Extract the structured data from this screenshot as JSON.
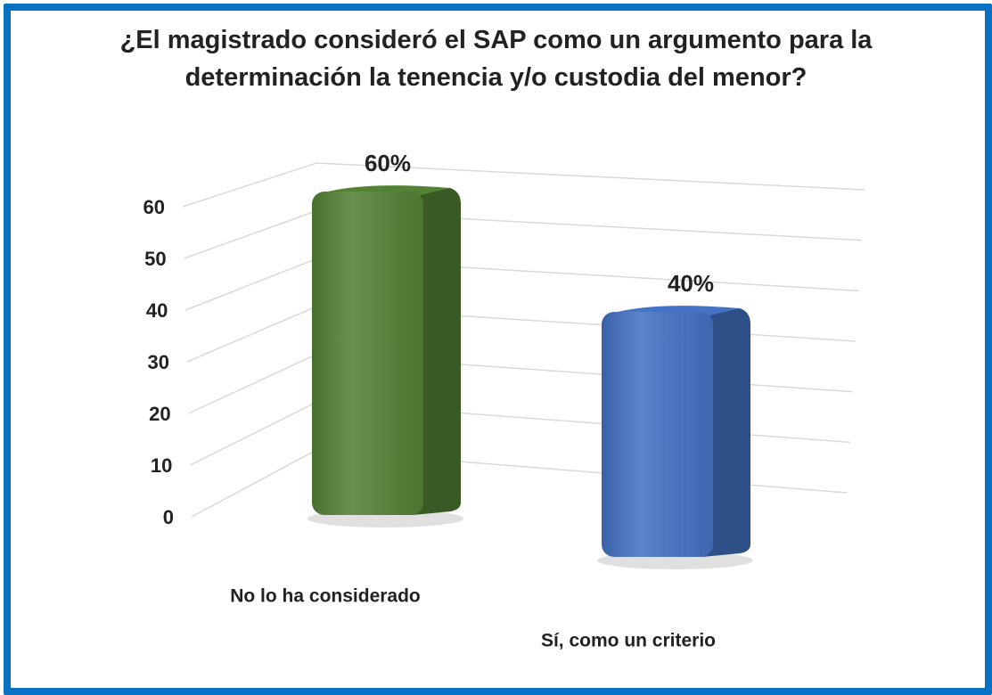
{
  "chart_data": {
    "type": "bar3d",
    "title": "¿El magistrado consideró el SAP como un argumento para la determinación la tenencia y/o custodia del menor?",
    "categories": [
      "No lo ha considerado",
      "Sí, como un criterio"
    ],
    "values": [
      60,
      40
    ],
    "value_labels": [
      "60%",
      "40%"
    ],
    "colors": [
      "#548235",
      "#4472c4"
    ],
    "ylim": [
      0,
      60
    ],
    "yticks": [
      0,
      10,
      20,
      30,
      40,
      50,
      60
    ],
    "grid": true
  }
}
